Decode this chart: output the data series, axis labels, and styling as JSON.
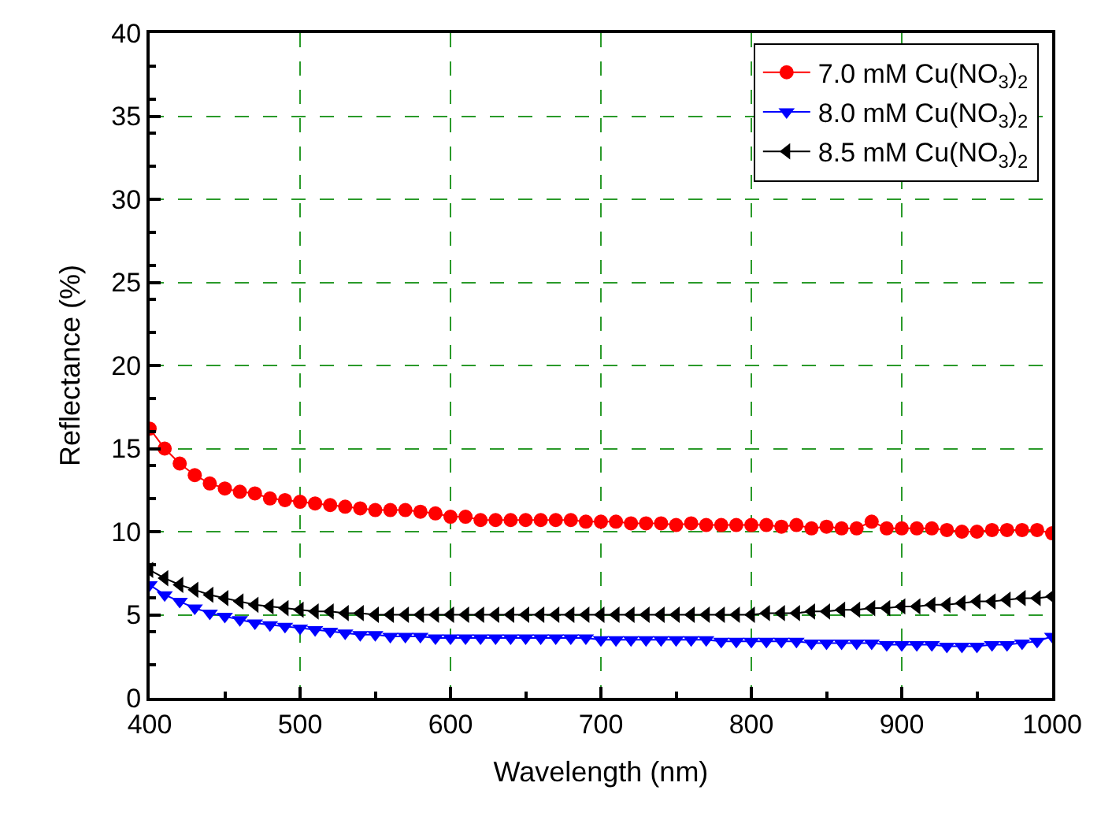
{
  "chart_data": {
    "type": "line",
    "xlabel": "Wavelength (nm)",
    "ylabel": "Reflectance (%)",
    "x": [
      400,
      410,
      420,
      430,
      440,
      450,
      460,
      470,
      480,
      490,
      500,
      510,
      520,
      530,
      540,
      550,
      560,
      570,
      580,
      590,
      600,
      610,
      620,
      630,
      640,
      650,
      660,
      670,
      680,
      690,
      700,
      710,
      720,
      730,
      740,
      750,
      760,
      770,
      780,
      790,
      800,
      810,
      820,
      830,
      840,
      850,
      860,
      870,
      880,
      890,
      900,
      910,
      920,
      930,
      940,
      950,
      960,
      970,
      980,
      990,
      1000
    ],
    "series": [
      {
        "name": "7.0 mM Cu(NO$_{3}$)$_{2}$",
        "color": "#ff0000",
        "marker": "circle",
        "values": [
          16.2,
          15.0,
          14.1,
          13.4,
          12.9,
          12.6,
          12.4,
          12.3,
          12.0,
          11.9,
          11.8,
          11.7,
          11.6,
          11.5,
          11.4,
          11.3,
          11.3,
          11.3,
          11.2,
          11.1,
          10.9,
          10.9,
          10.7,
          10.7,
          10.7,
          10.7,
          10.7,
          10.7,
          10.7,
          10.6,
          10.6,
          10.6,
          10.5,
          10.5,
          10.5,
          10.4,
          10.5,
          10.4,
          10.4,
          10.4,
          10.4,
          10.4,
          10.3,
          10.4,
          10.2,
          10.3,
          10.2,
          10.2,
          10.6,
          10.2,
          10.2,
          10.2,
          10.2,
          10.1,
          10.0,
          10.0,
          10.1,
          10.1,
          10.1,
          10.1,
          9.9
        ]
      },
      {
        "name": "8.0 mM Cu(NO$_{3}$)$_{2}$",
        "color": "#0000ff",
        "marker": "triangle-down",
        "values": [
          6.8,
          6.2,
          5.8,
          5.4,
          5.1,
          4.9,
          4.7,
          4.5,
          4.4,
          4.3,
          4.2,
          4.1,
          4.0,
          3.9,
          3.8,
          3.8,
          3.7,
          3.7,
          3.7,
          3.6,
          3.6,
          3.6,
          3.6,
          3.6,
          3.6,
          3.6,
          3.6,
          3.6,
          3.6,
          3.6,
          3.5,
          3.5,
          3.5,
          3.5,
          3.5,
          3.5,
          3.5,
          3.5,
          3.4,
          3.4,
          3.4,
          3.4,
          3.4,
          3.4,
          3.3,
          3.3,
          3.3,
          3.3,
          3.3,
          3.2,
          3.2,
          3.2,
          3.2,
          3.1,
          3.1,
          3.1,
          3.2,
          3.2,
          3.3,
          3.4,
          3.7
        ]
      },
      {
        "name": "8.5 mM Cu(NO$_{3}$)$_{2}$",
        "color": "#000000",
        "marker": "triangle-left",
        "values": [
          7.7,
          7.2,
          6.8,
          6.5,
          6.2,
          6.0,
          5.8,
          5.6,
          5.5,
          5.4,
          5.3,
          5.2,
          5.2,
          5.1,
          5.1,
          5.0,
          5.0,
          5.0,
          5.0,
          5.0,
          5.0,
          5.0,
          5.0,
          5.0,
          5.0,
          5.0,
          5.0,
          5.0,
          5.0,
          5.0,
          5.0,
          5.0,
          5.0,
          5.0,
          5.0,
          5.0,
          5.0,
          5.0,
          5.0,
          5.0,
          5.0,
          5.1,
          5.1,
          5.1,
          5.2,
          5.2,
          5.3,
          5.3,
          5.4,
          5.4,
          5.5,
          5.5,
          5.6,
          5.6,
          5.7,
          5.8,
          5.8,
          5.9,
          6.0,
          6.0,
          6.1
        ]
      }
    ],
    "xlim": [
      400,
      1000
    ],
    "xticks": [
      400,
      500,
      600,
      700,
      800,
      900,
      1000
    ],
    "ylim": [
      0,
      40
    ],
    "yticks": [
      0,
      5,
      10,
      15,
      20,
      25,
      30,
      35,
      40
    ],
    "grid": true,
    "legend": "top right",
    "line_style": "solid"
  }
}
